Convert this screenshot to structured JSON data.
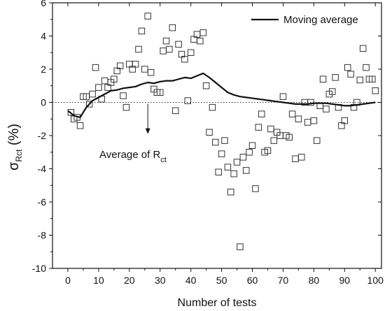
{
  "chart_data": {
    "type": "scatter",
    "title": "",
    "xlabel": "Number of tests",
    "ylabel": {
      "main": "σ",
      "subscript": "Rct",
      "suffix": " (%)"
    },
    "xlim": [
      -5,
      102
    ],
    "ylim": [
      -10,
      6
    ],
    "xticks": [
      0,
      10,
      20,
      30,
      40,
      50,
      60,
      70,
      80,
      90,
      100
    ],
    "yticks": [
      -10,
      -8,
      -6,
      -4,
      -2,
      0,
      2,
      4,
      6
    ],
    "grid": false,
    "legend": {
      "position": "top-right",
      "entries": [
        "Moving average"
      ]
    },
    "reference_line": {
      "y": 0,
      "style": "dotted"
    },
    "annotation": {
      "text": "Average of R",
      "subscript": "ct",
      "arrow_from": [
        26,
        0
      ],
      "arrow_to": [
        26,
        -1.9
      ]
    },
    "series": [
      {
        "name": "",
        "marker": "open-square",
        "points": [
          [
            1,
            -0.6
          ],
          [
            2,
            -1.0
          ],
          [
            3,
            -0.9
          ],
          [
            4,
            -1.4
          ],
          [
            5,
            0.35
          ],
          [
            6,
            0.35
          ],
          [
            7,
            -0.1
          ],
          [
            8,
            0.5
          ],
          [
            9,
            2.1
          ],
          [
            10,
            0.9
          ],
          [
            11,
            0.2
          ],
          [
            12,
            1.3
          ],
          [
            13,
            0.9
          ],
          [
            14,
            1.2
          ],
          [
            15,
            1.4
          ],
          [
            16,
            1.9
          ],
          [
            17,
            2.2
          ],
          [
            18,
            0.4
          ],
          [
            19,
            -0.3
          ],
          [
            20,
            2.3
          ],
          [
            21,
            2.0
          ],
          [
            22,
            2.3
          ],
          [
            23,
            3.2
          ],
          [
            24,
            4.3
          ],
          [
            25,
            2.0
          ],
          [
            26,
            5.2
          ],
          [
            27,
            1.8
          ],
          [
            28,
            0.8
          ],
          [
            29,
            0.6
          ],
          [
            30,
            0.6
          ],
          [
            31,
            3.1
          ],
          [
            32,
            3.7
          ],
          [
            33,
            3.2
          ],
          [
            34,
            4.5
          ],
          [
            35,
            -0.5
          ],
          [
            36,
            3.5
          ],
          [
            37,
            2.9
          ],
          [
            38,
            2.6
          ],
          [
            39,
            0.1
          ],
          [
            40,
            3.0
          ],
          [
            41,
            3.8
          ],
          [
            42,
            4.1
          ],
          [
            43,
            3.7
          ],
          [
            44,
            4.2
          ],
          [
            45,
            1.0
          ],
          [
            46,
            -1.8
          ],
          [
            47,
            -0.3
          ],
          [
            48,
            -2.4
          ],
          [
            49,
            -4.2
          ],
          [
            50,
            -3.1
          ],
          [
            51,
            -2.3
          ],
          [
            52,
            -3.9
          ],
          [
            53,
            -5.4
          ],
          [
            54,
            -4.3
          ],
          [
            55,
            -3.6
          ],
          [
            56,
            -8.7
          ],
          [
            57,
            -3.3
          ],
          [
            58,
            -4.1
          ],
          [
            59,
            -3.0
          ],
          [
            60,
            -2.6
          ],
          [
            61,
            -5.2
          ],
          [
            62,
            -1.5
          ],
          [
            63,
            -0.7
          ],
          [
            64,
            -3.0
          ],
          [
            65,
            -2.9
          ],
          [
            66,
            -1.6
          ],
          [
            67,
            -2.3
          ],
          [
            68,
            -1.8
          ],
          [
            69,
            -2.0
          ],
          [
            70,
            0.35
          ],
          [
            71,
            -2.0
          ],
          [
            72,
            -2.1
          ],
          [
            73,
            -0.7
          ],
          [
            74,
            -3.4
          ],
          [
            75,
            -1.0
          ],
          [
            76,
            -3.3
          ],
          [
            77,
            0.0
          ],
          [
            78,
            -1.2
          ],
          [
            79,
            0.0
          ],
          [
            80,
            -1.1
          ],
          [
            81,
            -2.3
          ],
          [
            82,
            -0.2
          ],
          [
            83,
            1.4
          ],
          [
            84,
            -0.4
          ],
          [
            85,
            0.5
          ],
          [
            86,
            0.65
          ],
          [
            87,
            1.5
          ],
          [
            88,
            -0.3
          ],
          [
            89,
            -1.4
          ],
          [
            90,
            -1.1
          ],
          [
            91,
            2.1
          ],
          [
            92,
            1.7
          ],
          [
            93,
            -0.3
          ],
          [
            94,
            0.0
          ],
          [
            95,
            1.35
          ],
          [
            96,
            3.25
          ],
          [
            97,
            2.1
          ],
          [
            98,
            1.4
          ],
          [
            99,
            1.4
          ],
          [
            100,
            0.7
          ]
        ]
      },
      {
        "name": "Moving average",
        "style": "line",
        "points": [
          [
            0,
            -0.5
          ],
          [
            2,
            -0.8
          ],
          [
            4,
            -0.9
          ],
          [
            6,
            -0.3
          ],
          [
            8,
            0.1
          ],
          [
            10,
            0.3
          ],
          [
            12,
            0.5
          ],
          [
            14,
            0.7
          ],
          [
            16,
            0.75
          ],
          [
            18,
            0.85
          ],
          [
            20,
            0.9
          ],
          [
            22,
            0.95
          ],
          [
            24,
            1.1
          ],
          [
            26,
            1.2
          ],
          [
            28,
            1.15
          ],
          [
            30,
            1.25
          ],
          [
            32,
            1.3
          ],
          [
            34,
            1.3
          ],
          [
            36,
            1.4
          ],
          [
            38,
            1.5
          ],
          [
            40,
            1.45
          ],
          [
            42,
            1.6
          ],
          [
            44,
            1.75
          ],
          [
            46,
            1.5
          ],
          [
            48,
            1.2
          ],
          [
            50,
            0.9
          ],
          [
            52,
            0.6
          ],
          [
            54,
            0.45
          ],
          [
            56,
            0.35
          ],
          [
            58,
            0.3
          ],
          [
            60,
            0.25
          ],
          [
            62,
            0.2
          ],
          [
            64,
            0.15
          ],
          [
            66,
            0.1
          ],
          [
            68,
            0.05
          ],
          [
            70,
            0.0
          ],
          [
            72,
            -0.05
          ],
          [
            74,
            -0.1
          ],
          [
            76,
            -0.1
          ],
          [
            78,
            -0.1
          ],
          [
            80,
            -0.05
          ],
          [
            82,
            -0.05
          ],
          [
            84,
            -0.05
          ],
          [
            86,
            -0.1
          ],
          [
            88,
            -0.15
          ],
          [
            90,
            -0.2
          ],
          [
            92,
            -0.2
          ],
          [
            94,
            -0.15
          ],
          [
            96,
            -0.1
          ],
          [
            98,
            -0.05
          ],
          [
            100,
            0.0
          ]
        ]
      }
    ]
  }
}
